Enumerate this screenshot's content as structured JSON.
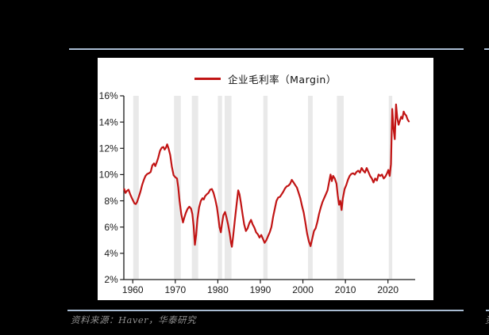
{
  "page": {
    "background": "#000000"
  },
  "rules": {
    "color": "#a9bcd2"
  },
  "legend": {
    "label": "企业毛利率（Margin）",
    "line_color": "#c11414",
    "text_color": "#111111"
  },
  "source_note": {
    "text": "资料来源：Haver，华泰研究",
    "color": "#8f8f8f",
    "right_fragment": "资"
  },
  "axis": {
    "text_color": "#1a1a1a",
    "line_color": "#1a1a1a"
  },
  "chart_data": {
    "type": "line",
    "title": "",
    "xlabel": "",
    "ylabel": "",
    "legend_position": "top-center",
    "grid": false,
    "x_range": [
      1957.9,
      2026.4
    ],
    "y_range": [
      2,
      16
    ],
    "x_ticks": [
      1960,
      1970,
      1980,
      1990,
      2000,
      2010,
      2020
    ],
    "y_ticks": [
      2,
      4,
      6,
      8,
      10,
      12,
      14,
      16
    ],
    "y_tick_suffix": "%",
    "band_color": "#e9e9e9",
    "recession_bands": [
      [
        1960.1,
        1961.4
      ],
      [
        1969.7,
        1971.3
      ],
      [
        1973.9,
        1975.4
      ],
      [
        1980.0,
        1981.0
      ],
      [
        1981.6,
        1983.2
      ],
      [
        1990.7,
        1991.7
      ],
      [
        2001.2,
        2002.3
      ],
      [
        2008.0,
        2009.6
      ],
      [
        2020.2,
        2021.0
      ]
    ],
    "series": [
      {
        "name": "企业毛利率（Margin）",
        "color": "#c11414",
        "points": [
          [
            1958.0,
            8.9
          ],
          [
            1958.3,
            8.6
          ],
          [
            1958.6,
            8.75
          ],
          [
            1959.0,
            8.85
          ],
          [
            1959.4,
            8.5
          ],
          [
            1959.8,
            8.2
          ],
          [
            1960.1,
            8.0
          ],
          [
            1960.4,
            7.8
          ],
          [
            1960.7,
            7.75
          ],
          [
            1961.0,
            7.9
          ],
          [
            1961.4,
            8.3
          ],
          [
            1961.8,
            8.7
          ],
          [
            1962.2,
            9.2
          ],
          [
            1962.6,
            9.6
          ],
          [
            1963.0,
            9.9
          ],
          [
            1963.4,
            10.05
          ],
          [
            1963.8,
            10.1
          ],
          [
            1964.2,
            10.2
          ],
          [
            1964.6,
            10.7
          ],
          [
            1965.0,
            10.85
          ],
          [
            1965.3,
            10.65
          ],
          [
            1965.7,
            11.0
          ],
          [
            1966.0,
            11.3
          ],
          [
            1966.4,
            11.8
          ],
          [
            1966.8,
            12.05
          ],
          [
            1967.2,
            12.1
          ],
          [
            1967.5,
            11.9
          ],
          [
            1967.8,
            12.05
          ],
          [
            1968.1,
            12.3
          ],
          [
            1968.4,
            12.0
          ],
          [
            1968.8,
            11.5
          ],
          [
            1969.2,
            10.6
          ],
          [
            1969.6,
            9.95
          ],
          [
            1970.0,
            9.8
          ],
          [
            1970.4,
            9.7
          ],
          [
            1970.7,
            9.0
          ],
          [
            1971.0,
            8.0
          ],
          [
            1971.4,
            7.0
          ],
          [
            1971.8,
            6.35
          ],
          [
            1972.1,
            6.7
          ],
          [
            1972.5,
            7.1
          ],
          [
            1972.9,
            7.4
          ],
          [
            1973.3,
            7.55
          ],
          [
            1973.7,
            7.4
          ],
          [
            1974.0,
            7.0
          ],
          [
            1974.3,
            6.1
          ],
          [
            1974.6,
            4.65
          ],
          [
            1974.9,
            5.4
          ],
          [
            1975.2,
            6.6
          ],
          [
            1975.6,
            7.5
          ],
          [
            1976.0,
            8.0
          ],
          [
            1976.4,
            8.2
          ],
          [
            1976.7,
            8.1
          ],
          [
            1977.0,
            8.35
          ],
          [
            1977.4,
            8.5
          ],
          [
            1977.8,
            8.6
          ],
          [
            1978.2,
            8.85
          ],
          [
            1978.6,
            8.9
          ],
          [
            1979.0,
            8.6
          ],
          [
            1979.4,
            8.1
          ],
          [
            1979.8,
            7.5
          ],
          [
            1980.1,
            6.8
          ],
          [
            1980.4,
            6.0
          ],
          [
            1980.7,
            5.6
          ],
          [
            1981.0,
            6.3
          ],
          [
            1981.3,
            6.9
          ],
          [
            1981.7,
            7.15
          ],
          [
            1982.0,
            6.8
          ],
          [
            1982.4,
            6.2
          ],
          [
            1982.8,
            5.5
          ],
          [
            1983.1,
            4.8
          ],
          [
            1983.3,
            4.5
          ],
          [
            1983.6,
            5.3
          ],
          [
            1984.0,
            6.5
          ],
          [
            1984.4,
            7.7
          ],
          [
            1984.8,
            8.8
          ],
          [
            1985.1,
            8.5
          ],
          [
            1985.4,
            7.9
          ],
          [
            1985.8,
            7.0
          ],
          [
            1986.2,
            6.2
          ],
          [
            1986.6,
            5.7
          ],
          [
            1987.0,
            5.9
          ],
          [
            1987.4,
            6.3
          ],
          [
            1987.8,
            6.55
          ],
          [
            1988.2,
            6.2
          ],
          [
            1988.6,
            5.95
          ],
          [
            1989.0,
            5.6
          ],
          [
            1989.4,
            5.45
          ],
          [
            1989.8,
            5.2
          ],
          [
            1990.2,
            5.4
          ],
          [
            1990.6,
            5.1
          ],
          [
            1991.0,
            4.8
          ],
          [
            1991.4,
            5.0
          ],
          [
            1991.8,
            5.3
          ],
          [
            1992.2,
            5.6
          ],
          [
            1992.6,
            6.0
          ],
          [
            1993.0,
            6.8
          ],
          [
            1993.4,
            7.4
          ],
          [
            1993.8,
            8.0
          ],
          [
            1994.2,
            8.25
          ],
          [
            1994.6,
            8.3
          ],
          [
            1995.0,
            8.5
          ],
          [
            1995.4,
            8.7
          ],
          [
            1995.8,
            8.95
          ],
          [
            1996.2,
            9.1
          ],
          [
            1996.6,
            9.15
          ],
          [
            1997.0,
            9.3
          ],
          [
            1997.4,
            9.6
          ],
          [
            1997.8,
            9.4
          ],
          [
            1998.2,
            9.2
          ],
          [
            1998.6,
            9.0
          ],
          [
            1999.0,
            8.6
          ],
          [
            1999.4,
            8.2
          ],
          [
            1999.8,
            7.6
          ],
          [
            2000.2,
            7.1
          ],
          [
            2000.6,
            6.3
          ],
          [
            2001.0,
            5.5
          ],
          [
            2001.4,
            4.9
          ],
          [
            2001.8,
            4.55
          ],
          [
            2002.2,
            5.1
          ],
          [
            2002.6,
            5.7
          ],
          [
            2003.0,
            5.9
          ],
          [
            2003.4,
            6.4
          ],
          [
            2003.8,
            7.0
          ],
          [
            2004.2,
            7.5
          ],
          [
            2004.6,
            7.9
          ],
          [
            2005.0,
            8.2
          ],
          [
            2005.4,
            8.5
          ],
          [
            2005.8,
            8.8
          ],
          [
            2006.2,
            9.5
          ],
          [
            2006.5,
            10.0
          ],
          [
            2006.8,
            9.5
          ],
          [
            2007.1,
            9.9
          ],
          [
            2007.5,
            9.7
          ],
          [
            2007.9,
            9.3
          ],
          [
            2008.2,
            8.4
          ],
          [
            2008.5,
            7.7
          ],
          [
            2008.8,
            8.0
          ],
          [
            2009.1,
            7.3
          ],
          [
            2009.4,
            8.2
          ],
          [
            2009.8,
            8.9
          ],
          [
            2010.2,
            9.2
          ],
          [
            2010.6,
            9.6
          ],
          [
            2011.0,
            9.9
          ],
          [
            2011.4,
            10.05
          ],
          [
            2011.8,
            10.1
          ],
          [
            2012.2,
            10.0
          ],
          [
            2012.6,
            10.2
          ],
          [
            2013.0,
            10.3
          ],
          [
            2013.4,
            10.15
          ],
          [
            2013.8,
            10.5
          ],
          [
            2014.2,
            10.3
          ],
          [
            2014.6,
            10.15
          ],
          [
            2015.0,
            10.5
          ],
          [
            2015.4,
            10.2
          ],
          [
            2015.8,
            9.9
          ],
          [
            2016.2,
            9.7
          ],
          [
            2016.6,
            9.4
          ],
          [
            2017.0,
            9.7
          ],
          [
            2017.4,
            9.55
          ],
          [
            2017.8,
            10.0
          ],
          [
            2018.2,
            9.9
          ],
          [
            2018.6,
            10.0
          ],
          [
            2019.0,
            9.7
          ],
          [
            2019.4,
            9.85
          ],
          [
            2019.8,
            10.1
          ],
          [
            2020.1,
            10.35
          ],
          [
            2020.4,
            9.9
          ],
          [
            2020.7,
            10.8
          ],
          [
            2021.0,
            15.0
          ],
          [
            2021.3,
            13.5
          ],
          [
            2021.6,
            12.7
          ],
          [
            2021.9,
            15.35
          ],
          [
            2022.2,
            14.3
          ],
          [
            2022.5,
            13.8
          ],
          [
            2022.8,
            14.1
          ],
          [
            2023.1,
            14.4
          ],
          [
            2023.4,
            14.25
          ],
          [
            2023.7,
            14.8
          ],
          [
            2024.0,
            14.6
          ],
          [
            2024.3,
            14.5
          ],
          [
            2024.6,
            14.2
          ],
          [
            2024.9,
            14.05
          ]
        ]
      }
    ]
  }
}
